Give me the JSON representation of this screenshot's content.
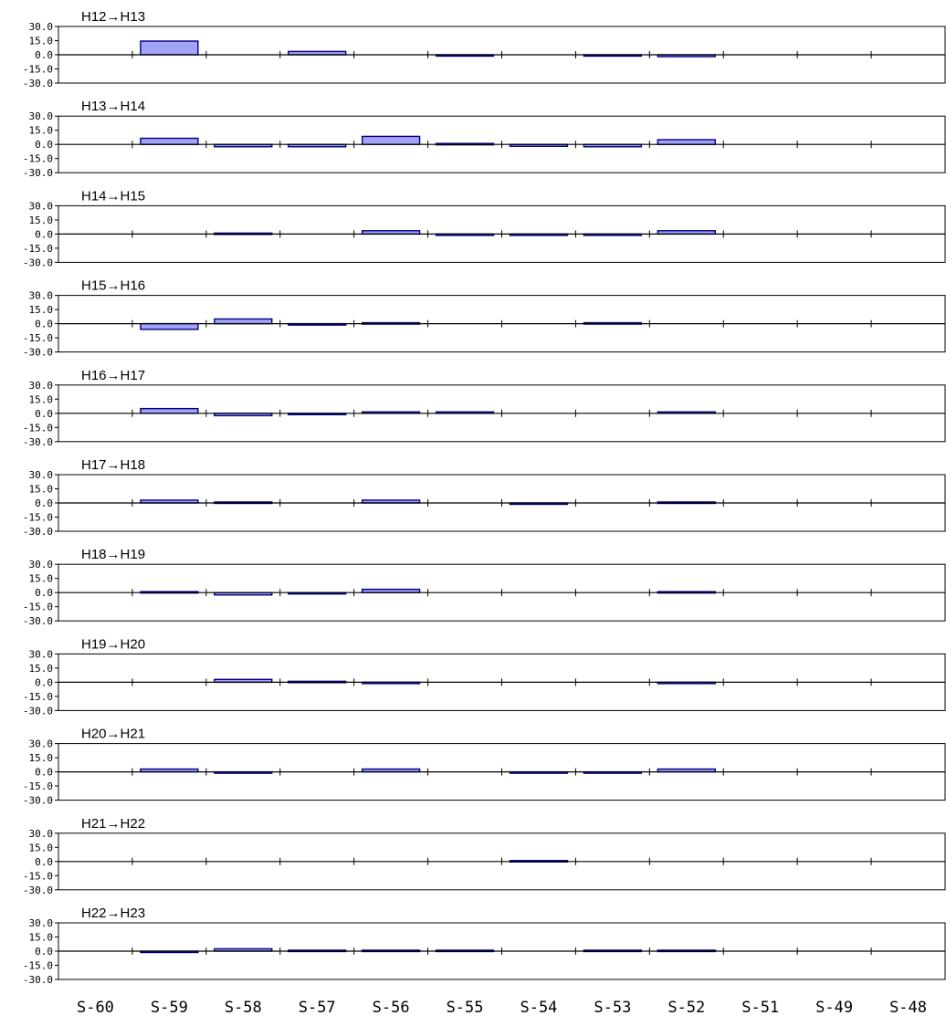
{
  "colors": {
    "bar_fill": "#a3a3f7",
    "bar_stroke": "#000080",
    "axis": "#000000"
  },
  "chart_data": {
    "type": "bar",
    "ylim": [
      -30,
      30
    ],
    "ytick_labels": [
      "30.0",
      "15.0",
      "0.0",
      "-15.0",
      "-30.0"
    ],
    "ytick_values": [
      30,
      15,
      0,
      -15,
      -30
    ],
    "categories": [
      "S-60",
      "S-59",
      "S-58",
      "S-57",
      "S-56",
      "S-55",
      "S-54",
      "S-53",
      "S-52",
      "S-51",
      "S-49",
      "S-48"
    ],
    "grid": false,
    "panels": [
      {
        "title": "H12→H13",
        "values": [
          0,
          14.5,
          0,
          3.5,
          0,
          -1,
          0,
          -1,
          -2,
          0,
          0,
          0
        ]
      },
      {
        "title": "H13→H14",
        "values": [
          0,
          6.5,
          -2.5,
          -2.5,
          8.5,
          1,
          -2,
          -2.5,
          5,
          0,
          0,
          0
        ]
      },
      {
        "title": "H14→H15",
        "values": [
          0,
          0,
          1,
          0,
          3.5,
          -1,
          -1,
          -1,
          3.5,
          0,
          0,
          0
        ]
      },
      {
        "title": "H15→H16",
        "values": [
          0,
          -6,
          5,
          -1.5,
          1,
          0,
          0,
          1,
          0,
          0,
          0,
          0
        ]
      },
      {
        "title": "H16→H17",
        "values": [
          0,
          5,
          -2.5,
          -1,
          1.5,
          1.5,
          0,
          0,
          1.5,
          0,
          0,
          0
        ]
      },
      {
        "title": "H17→H18",
        "values": [
          0,
          3,
          1,
          0,
          3,
          0,
          -1,
          0,
          1,
          0,
          0,
          0
        ]
      },
      {
        "title": "H18→H19",
        "values": [
          0,
          1,
          -2.5,
          -1,
          3.5,
          0,
          0,
          0,
          1,
          0,
          0,
          0
        ]
      },
      {
        "title": "H19→H20",
        "values": [
          0,
          0,
          3,
          1,
          -1,
          0,
          0,
          0,
          -1,
          0,
          0,
          0
        ]
      },
      {
        "title": "H20→H21",
        "values": [
          0,
          3,
          -1,
          0,
          3,
          0,
          -1,
          -1,
          3,
          0,
          0,
          0
        ]
      },
      {
        "title": "H21→H22",
        "values": [
          0,
          0,
          0,
          0,
          0,
          0,
          1,
          0,
          0,
          0,
          0,
          0
        ]
      },
      {
        "title": "H22→H23",
        "values": [
          0,
          -1,
          2.5,
          1,
          1,
          1,
          0,
          1,
          1,
          0,
          0,
          0
        ]
      }
    ]
  }
}
